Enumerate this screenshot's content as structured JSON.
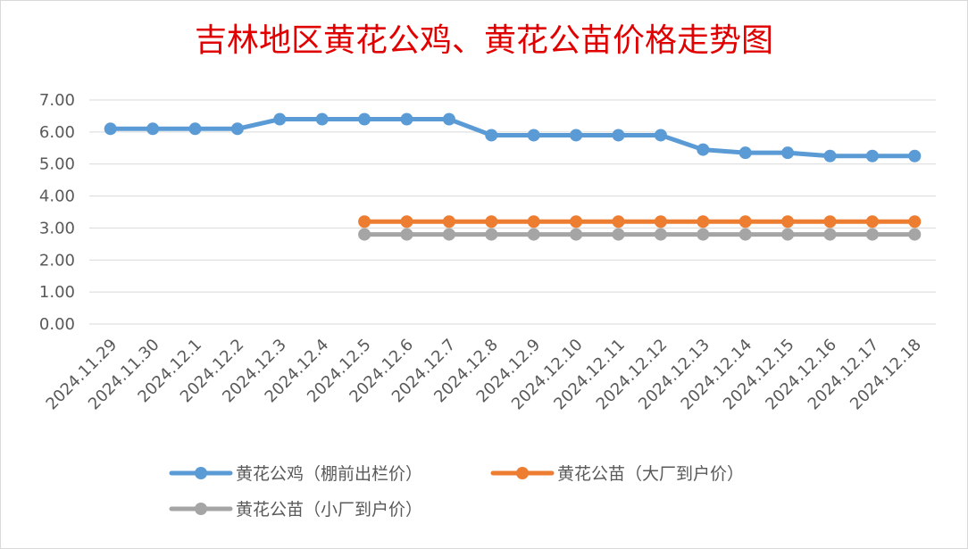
{
  "chart_data": {
    "type": "line",
    "title": "吉林地区黄花公鸡、黄花公苗价格走势图",
    "xlabel": "",
    "ylabel": "",
    "categories": [
      "2024.11.29",
      "2024.11.30",
      "2024.12.1",
      "2024.12.2",
      "2024.12.3",
      "2024.12.4",
      "2024.12.5",
      "2024.12.6",
      "2024.12.7",
      "2024.12.8",
      "2024.12.9",
      "2024.12.10",
      "2024.12.11",
      "2024.12.12",
      "2024.12.13",
      "2024.12.14",
      "2024.12.15",
      "2024.12.16",
      "2024.12.17",
      "2024.12.18"
    ],
    "ylim": [
      0,
      7
    ],
    "yticks": [
      "0.00",
      "1.00",
      "2.00",
      "3.00",
      "4.00",
      "5.00",
      "6.00",
      "7.00"
    ],
    "grid": true,
    "legend_position": "bottom",
    "series": [
      {
        "name": "黄花公鸡（棚前出栏价）",
        "color": "#5b9bd5",
        "values": [
          6.1,
          6.1,
          6.1,
          6.1,
          6.4,
          6.4,
          6.4,
          6.4,
          6.4,
          5.9,
          5.9,
          5.9,
          5.9,
          5.9,
          5.45,
          5.35,
          5.35,
          5.25,
          5.25,
          5.25
        ]
      },
      {
        "name": "黄花公苗（大厂到户价）",
        "color": "#ed7d31",
        "values": [
          null,
          null,
          null,
          null,
          null,
          null,
          3.2,
          3.2,
          3.2,
          3.2,
          3.2,
          3.2,
          3.2,
          3.2,
          3.2,
          3.2,
          3.2,
          3.2,
          3.2,
          3.2
        ]
      },
      {
        "name": "黄花公苗（小厂到户价）",
        "color": "#a5a5a5",
        "values": [
          null,
          null,
          null,
          null,
          null,
          null,
          2.8,
          2.8,
          2.8,
          2.8,
          2.8,
          2.8,
          2.8,
          2.8,
          2.8,
          2.8,
          2.8,
          2.8,
          2.8,
          2.8
        ]
      }
    ]
  }
}
